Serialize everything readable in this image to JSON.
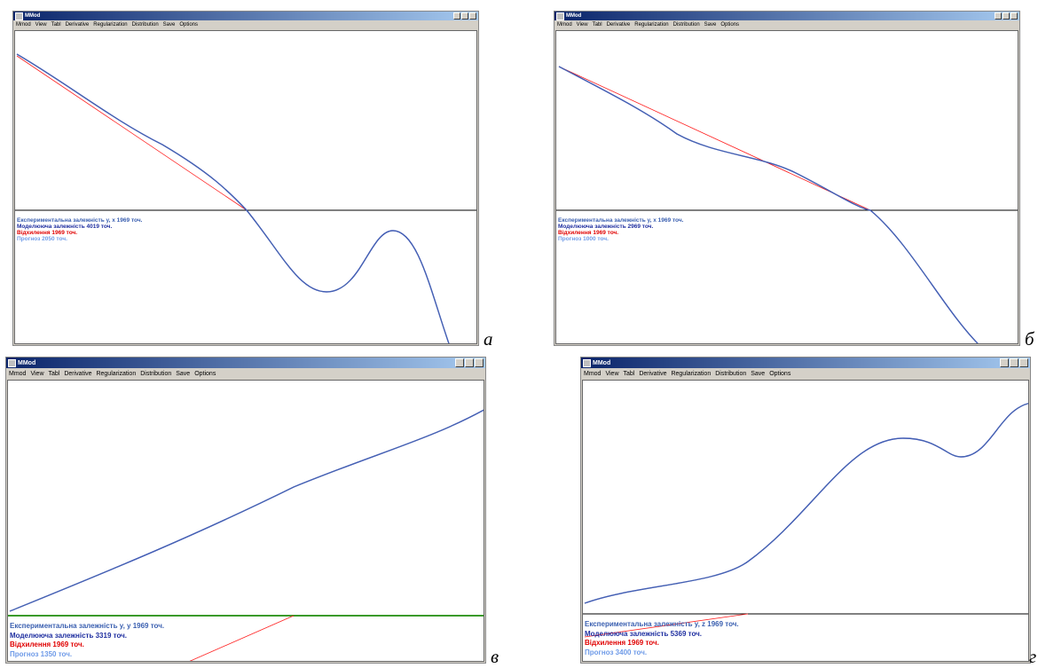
{
  "panels": [
    {
      "title": "MMod",
      "menu": [
        "Mmod",
        "View",
        "Tabl",
        "Derivative",
        "Regularization",
        "Distribution",
        "Save",
        "Options"
      ],
      "legend": [
        "Експериментальна залежність y, x 1969 точ.",
        "Моделююча залежність 4019 точ.",
        "Відхилення 1969 точ.",
        "Прогноз 2050 точ."
      ],
      "label": "а"
    },
    {
      "title": "MMod",
      "menu": [
        "Mmod",
        "View",
        "Tabl",
        "Derivative",
        "Regularization",
        "Distribution",
        "Save",
        "Options"
      ],
      "legend": [
        "Експериментальна залежність y, x 1969 точ.",
        "Моделююча залежність 2969 точ.",
        "Відхилення 1969 точ.",
        "Прогноз 1000 точ."
      ],
      "label": "б"
    },
    {
      "title": "MMod",
      "menu": [
        "Mmod",
        "View",
        "Tabl",
        "Derivative",
        "Regularization",
        "Distribution",
        "Save",
        "Options"
      ],
      "legend": [
        "Експериментальна залежність y, y 1969 точ.",
        "Моделююча залежність 3319 точ.",
        "Відхилення 1969 точ.",
        "Прогноз 1350 точ."
      ],
      "label": "в"
    },
    {
      "title": "MMod",
      "menu": [
        "Mmod",
        "View",
        "Tabl",
        "Derivative",
        "Regularization",
        "Distribution",
        "Save",
        "Options"
      ],
      "legend": [
        "Експериментальна залежність y, z 1969 точ.",
        "Моделююча залежність 5369 точ.",
        "Відхилення 1969 точ.",
        "Прогноз 3400 точ."
      ],
      "label": "г"
    }
  ]
}
